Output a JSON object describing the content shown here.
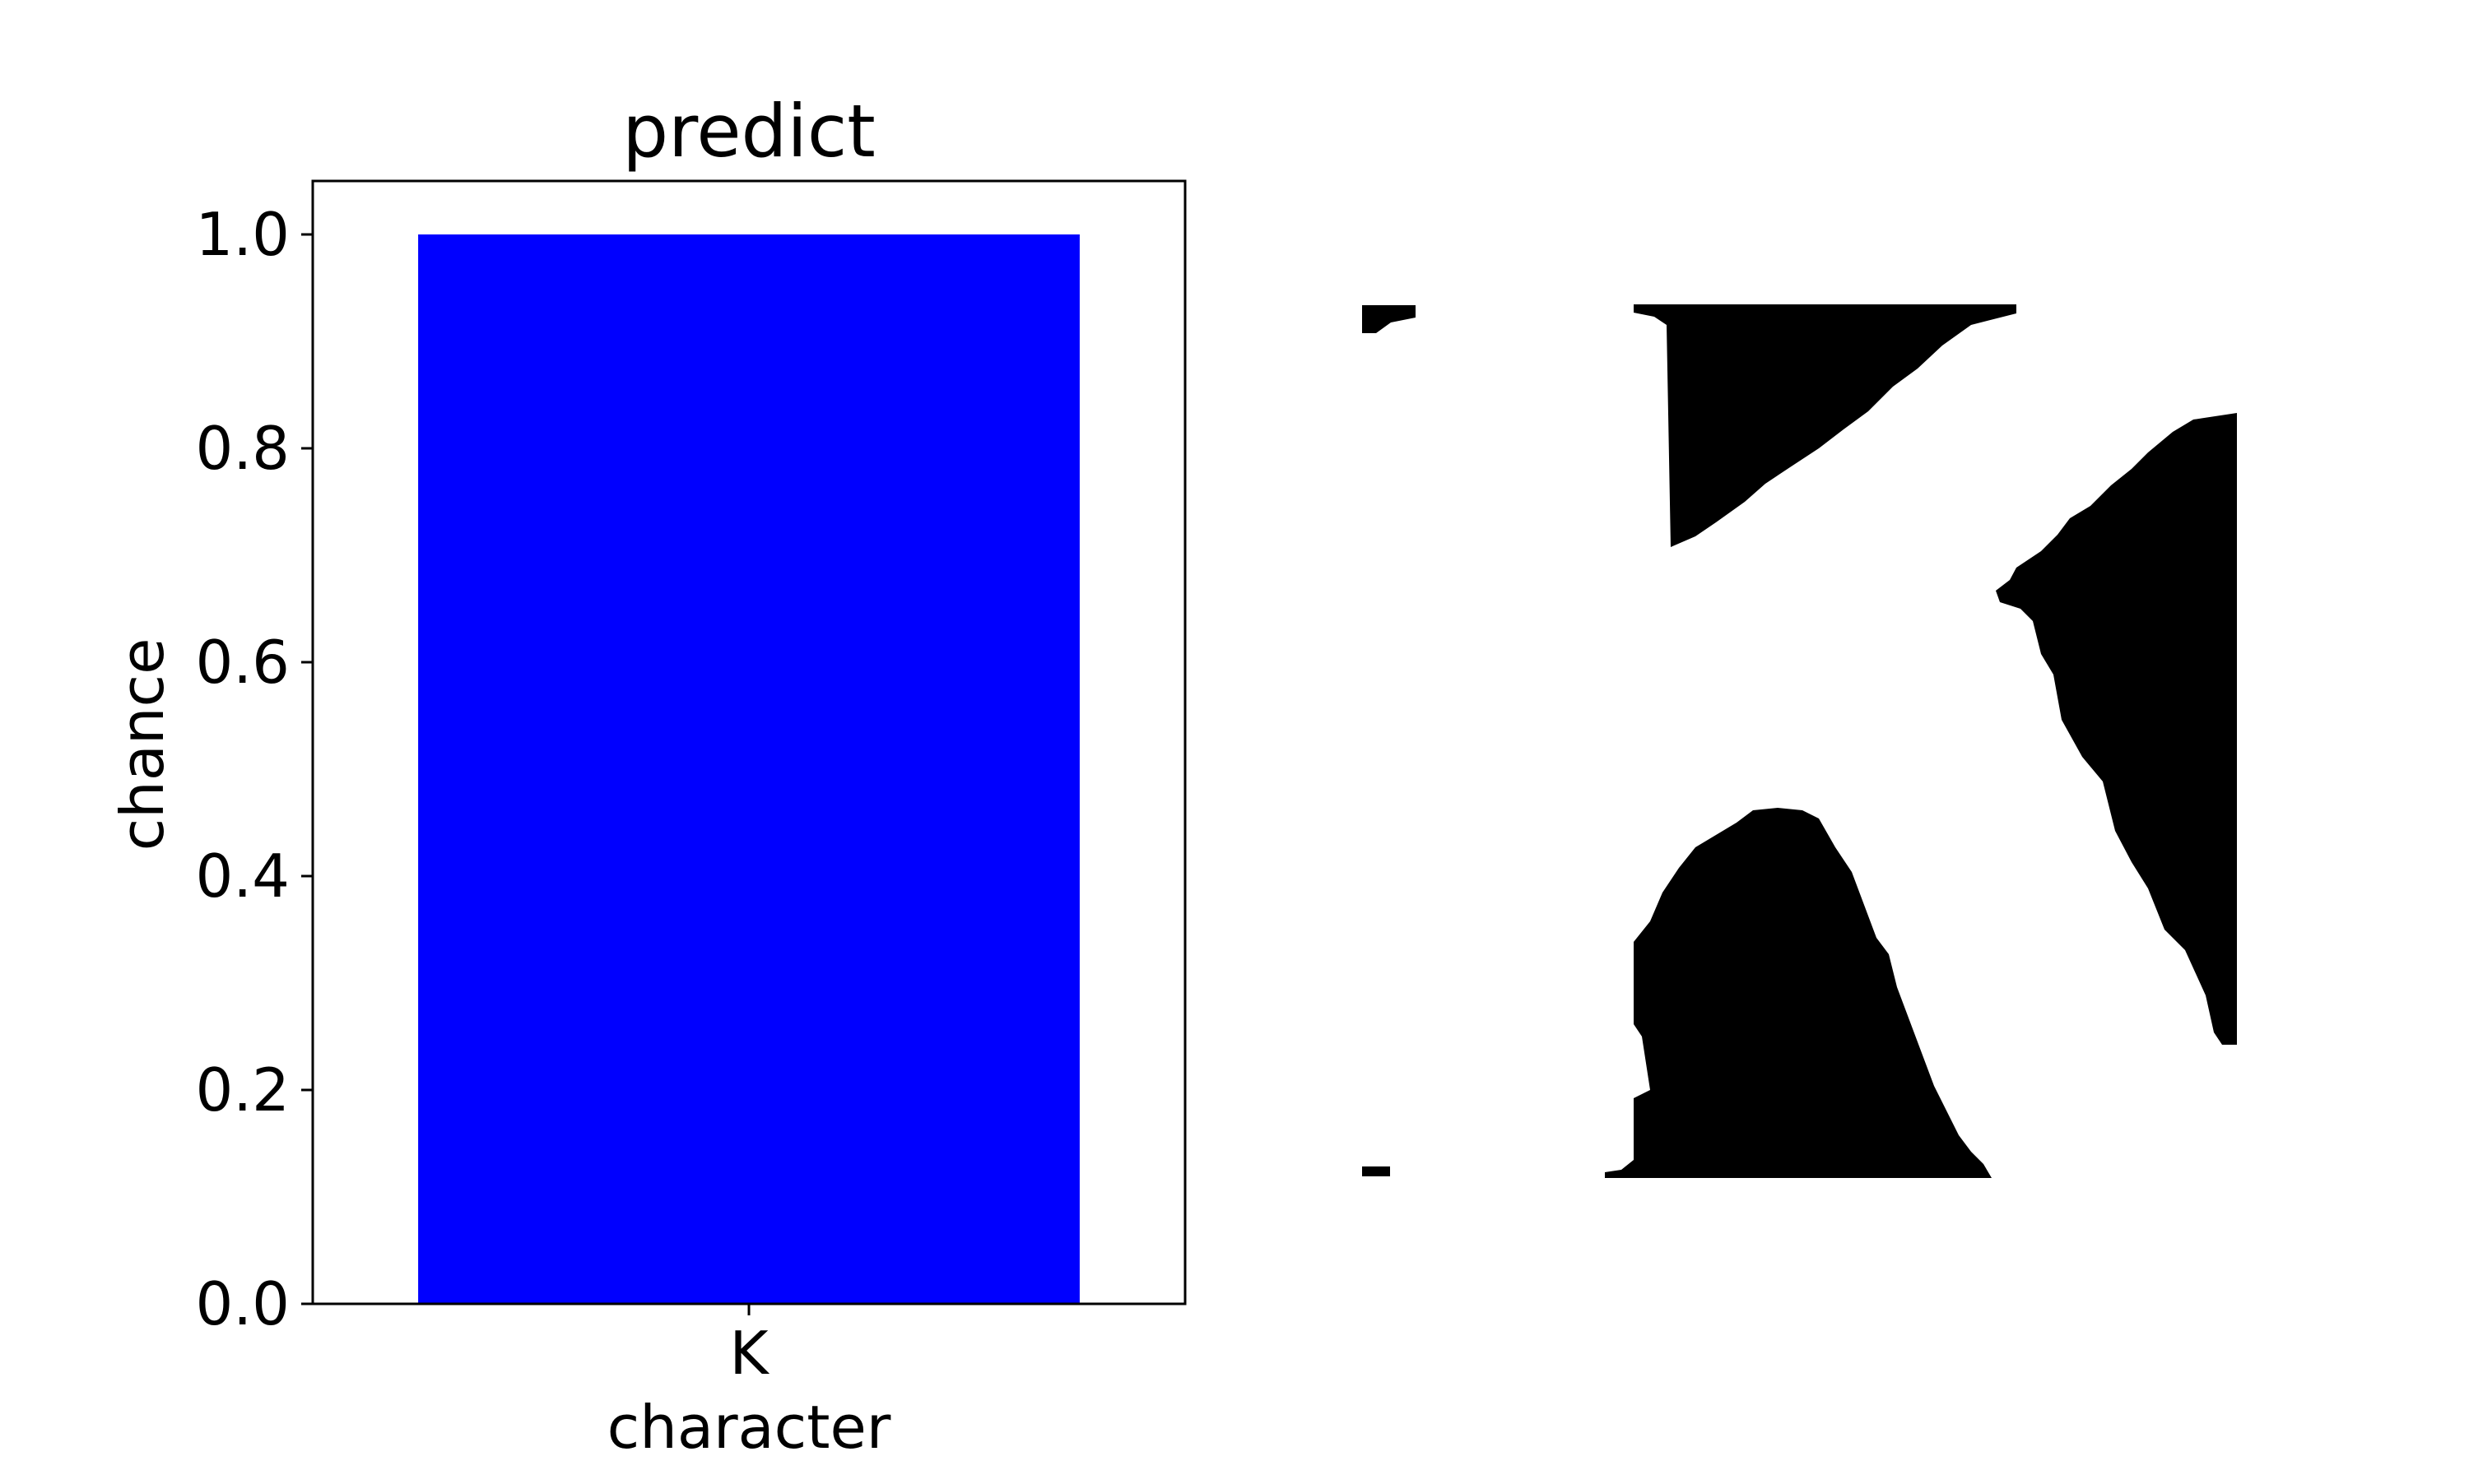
{
  "chart_data": {
    "type": "bar",
    "title": "predict",
    "xlabel": "character",
    "ylabel": "chance",
    "categories": [
      "K"
    ],
    "values": [
      1.0
    ],
    "ylim": [
      0,
      1.05
    ],
    "yticks": [
      "0.0",
      "0.2",
      "0.4",
      "0.6",
      "0.8",
      "1.0"
    ],
    "bar_color": "#0000ff",
    "grid": false
  },
  "image_panel": {
    "description_icon": "character-image",
    "colors": {
      "ink": "#000000",
      "paper": "#ffffff"
    }
  }
}
